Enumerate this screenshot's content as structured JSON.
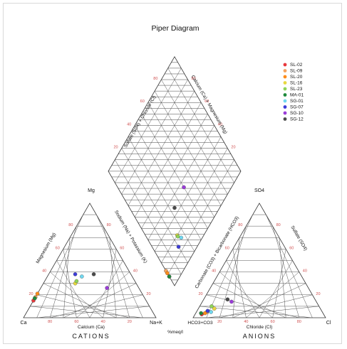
{
  "chart_data": {
    "type": "scatter",
    "subtype": "piper-ternary",
    "title": "Piper Diagram",
    "units_label": "%meq/l",
    "cation_triangle": {
      "title": "CATIONS",
      "bottom_axis_label": "Calcium (Ca)",
      "left_axis_label": "Magnesium (Mg)",
      "right_axis_label": "Sodium (Na) + Potassium (K)",
      "vertex_left": "Ca",
      "vertex_right": "Na+K",
      "vertex_top": "Mg",
      "tick_labels": [
        "80",
        "60",
        "40",
        "20"
      ]
    },
    "anion_triangle": {
      "title": "ANIONS",
      "bottom_axis_label": "Chloride (Cl)",
      "left_axis_label": "Carbonate (CO3) + Bicarbonate (HCO3)",
      "right_axis_label": "Sulfate (SO4)",
      "vertex_left": "HCO3+CO3",
      "vertex_right": "Cl",
      "vertex_top": "SO4",
      "tick_labels": [
        "20",
        "40",
        "60",
        "80"
      ]
    },
    "diamond": {
      "upper_left_label": "Sulfate (SO4) + Chloride (Cl)",
      "upper_right_label": "Calcium (Ca) + Magnesium (Mg)"
    },
    "legend": {
      "position": "top-right"
    },
    "series": [
      {
        "name": "SL-02",
        "color": "#e8383d",
        "cation": {
          "ca": 88,
          "mg": 15,
          "na_k": -3
        },
        "anion": {
          "hco3": 92,
          "cl": 5,
          "so4": 3
        }
      },
      {
        "name": "SL-09",
        "color": "#f4a460",
        "cation": {
          "ca": 91,
          "mg": 18,
          "na_k": -9
        },
        "anion": {
          "hco3": 87,
          "cl": 8,
          "so4": 5
        }
      },
      {
        "name": "SL-20",
        "color": "#ff8c1a",
        "cation": {
          "ca": 89,
          "mg": 21,
          "na_k": -10
        },
        "anion": {
          "hco3": 89,
          "cl": 7,
          "so4": 4
        }
      },
      {
        "name": "SL-16",
        "color": "#e8d840",
        "cation": {
          "ca": 46,
          "mg": 30,
          "na_k": 24
        },
        "anion": {
          "hco3": 80,
          "cl": 12,
          "so4": 8
        }
      },
      {
        "name": "SL-23",
        "color": "#8fd45a",
        "cation": {
          "ca": 44,
          "mg": 32,
          "na_k": 24
        },
        "anion": {
          "hco3": 81,
          "cl": 9,
          "so4": 10
        }
      },
      {
        "name": "MA-01",
        "color": "#1f8a3c",
        "cation": {
          "ca": 90,
          "mg": 17,
          "na_k": -7
        },
        "anion": {
          "hco3": 92,
          "cl": 4,
          "so4": 4
        }
      },
      {
        "name": "SG-01",
        "color": "#70d8f0",
        "cation": {
          "ca": 38,
          "mg": 36,
          "na_k": 26
        },
        "anion": {
          "hco3": 84,
          "cl": 11,
          "so4": 5
        }
      },
      {
        "name": "SG-07",
        "color": "#3c3cd8",
        "cation": {
          "ca": 42,
          "mg": 38,
          "na_k": 20
        },
        "anion": {
          "hco3": 86,
          "cl": 8,
          "so4": 6
        }
      },
      {
        "name": "SG-10",
        "color": "#9a3cd8",
        "cation": {
          "ca": 24,
          "mg": 26,
          "na_k": 50
        },
        "anion": {
          "hco3": 64,
          "cl": 22,
          "so4": 14
        }
      },
      {
        "name": "SG-12",
        "color": "#4a4a4a",
        "cation": {
          "ca": 28,
          "mg": 38,
          "na_k": 34
        },
        "anion": {
          "hco3": 66,
          "cl": 18,
          "so4": 16
        }
      }
    ]
  }
}
